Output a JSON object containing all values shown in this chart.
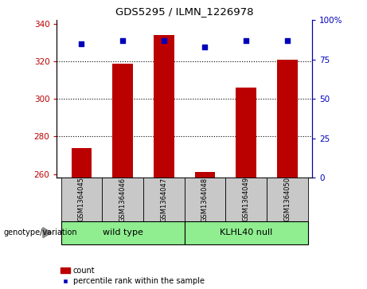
{
  "title": "GDS5295 / ILMN_1226978",
  "samples": [
    "GSM1364045",
    "GSM1364046",
    "GSM1364047",
    "GSM1364048",
    "GSM1364049",
    "GSM1364050"
  ],
  "counts": [
    274,
    319,
    334,
    261,
    306,
    321
  ],
  "percentiles": [
    85,
    87,
    87,
    83,
    87,
    87
  ],
  "ylim_left": [
    258,
    342
  ],
  "ylim_right": [
    0,
    100
  ],
  "yticks_left": [
    260,
    280,
    300,
    320,
    340
  ],
  "yticks_right": [
    0,
    25,
    50,
    75,
    100
  ],
  "bar_color": "#bb0000",
  "square_color": "#0000bb",
  "group1_label": "wild type",
  "group2_label": "KLHL40 null",
  "group_box_color": "#90ee90",
  "sample_box_color": "#c8c8c8",
  "legend_count_label": "count",
  "legend_pct_label": "percentile rank within the sample",
  "genotype_label": "genotype/variation",
  "right_ytick_labels": [
    "0",
    "25",
    "50",
    "75",
    "100%"
  ],
  "grid_lines": [
    280,
    300,
    320
  ],
  "dotted_line_color": "#333333"
}
